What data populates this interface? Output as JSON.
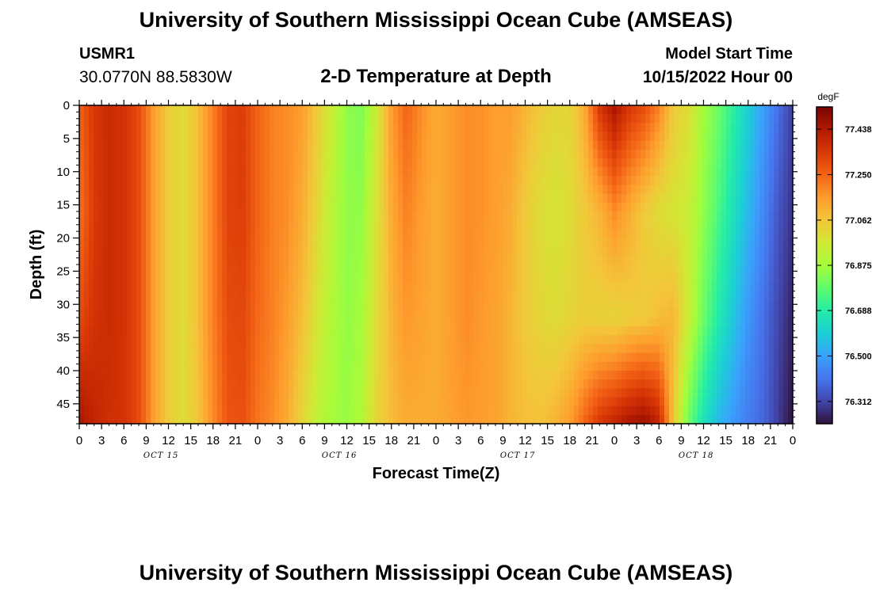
{
  "header": {
    "title": "University of Southern Mississippi Ocean Cube (AMSEAS)",
    "station_id": "USMR1",
    "coordinates": "30.0770N  88.5830W",
    "subtitle": "2-D Temperature at Depth",
    "model_start_label": "Model Start Time",
    "model_start_value": "10/15/2022 Hour 00"
  },
  "footer": {
    "title": "University of Southern Mississippi Ocean Cube (AMSEAS)"
  },
  "chart_data": {
    "type": "heatmap",
    "title": "2-D Temperature at Depth",
    "xlabel": "Forecast Time(Z)",
    "ylabel": "Depth (ft)",
    "x_range_hours": [
      0,
      96
    ],
    "y_range_ft": [
      0,
      48
    ],
    "x_tick_labels": [
      "0",
      "3",
      "6",
      "9",
      "12",
      "15",
      "18",
      "21",
      "0",
      "3",
      "6",
      "9",
      "12",
      "15",
      "18",
      "21",
      "0",
      "3",
      "6",
      "9",
      "12",
      "15",
      "18",
      "21",
      "0",
      "3",
      "6",
      "9",
      "12",
      "15",
      "18",
      "21",
      "0"
    ],
    "x_tick_hours": [
      0,
      3,
      6,
      9,
      12,
      15,
      18,
      21,
      24,
      27,
      30,
      33,
      36,
      39,
      42,
      45,
      48,
      51,
      54,
      57,
      60,
      63,
      66,
      69,
      72,
      75,
      78,
      81,
      84,
      87,
      90,
      93,
      96
    ],
    "date_labels": [
      {
        "label": "OCT 15",
        "hour": 11
      },
      {
        "label": "OCT 16",
        "hour": 35
      },
      {
        "label": "OCT 17",
        "hour": 59
      },
      {
        "label": "OCT 18",
        "hour": 83
      }
    ],
    "y_ticks": [
      0,
      5,
      10,
      15,
      20,
      25,
      30,
      35,
      40,
      45
    ],
    "colorbar": {
      "unit": "degF",
      "min": 76.22,
      "max": 77.53,
      "tick_values": [
        77.438,
        77.25,
        77.062,
        76.875,
        76.688,
        76.5,
        76.312
      ],
      "tick_labels": [
        "77.438",
        "77.250",
        "77.062",
        "76.875",
        "76.688",
        "76.500",
        "76.312"
      ]
    },
    "colormap_stops": [
      "#30123b",
      "#4145ab",
      "#4675ed",
      "#39a2fc",
      "#1bcfd4",
      "#24eca6",
      "#61fc6c",
      "#a4fc3b",
      "#d1e834",
      "#f3c63a",
      "#fe9b2d",
      "#f36315",
      "#d93806",
      "#b11901",
      "#7a0402"
    ],
    "depth_rows": [
      0,
      16,
      32,
      48
    ],
    "time_columns_hours": [
      0,
      2,
      4,
      6,
      8,
      10,
      12,
      14,
      16,
      18,
      20,
      22,
      24,
      26,
      28,
      30,
      32,
      34,
      36,
      38,
      40,
      42,
      44,
      46,
      48,
      50,
      52,
      54,
      56,
      58,
      60,
      62,
      64,
      66,
      68,
      70,
      72,
      74,
      76,
      78,
      80,
      82,
      84,
      86,
      88,
      90,
      92,
      94,
      96
    ],
    "temperature_grid_degF": [
      [
        77.25,
        77.35,
        77.38,
        77.36,
        77.3,
        77.15,
        77.05,
        77.0,
        77.08,
        77.2,
        77.32,
        77.33,
        77.25,
        77.2,
        77.18,
        77.15,
        77.05,
        76.95,
        76.85,
        76.82,
        76.95,
        77.15,
        77.25,
        77.18,
        77.12,
        77.15,
        77.18,
        77.17,
        77.15,
        77.15,
        77.1,
        77.05,
        77.02,
        77.02,
        77.12,
        77.35,
        77.45,
        77.35,
        77.3,
        77.2,
        77.05,
        77.0,
        76.88,
        76.8,
        76.7,
        76.6,
        76.5,
        76.4,
        76.3
      ],
      [
        77.22,
        77.34,
        77.38,
        77.36,
        77.3,
        77.15,
        77.05,
        77.0,
        77.08,
        77.2,
        77.32,
        77.33,
        77.25,
        77.2,
        77.18,
        77.12,
        77.02,
        76.92,
        76.85,
        76.85,
        76.98,
        77.12,
        77.2,
        77.15,
        77.12,
        77.15,
        77.18,
        77.17,
        77.15,
        77.12,
        77.05,
        77.0,
        76.98,
        77.0,
        77.05,
        77.1,
        77.18,
        77.12,
        77.05,
        77.0,
        76.98,
        76.95,
        76.85,
        76.75,
        76.65,
        76.55,
        76.45,
        76.35,
        76.28
      ],
      [
        77.3,
        77.36,
        77.38,
        77.36,
        77.3,
        77.15,
        77.05,
        77.0,
        77.08,
        77.2,
        77.3,
        77.31,
        77.24,
        77.2,
        77.15,
        77.08,
        76.98,
        76.9,
        76.85,
        76.88,
        77.0,
        77.1,
        77.16,
        77.14,
        77.12,
        77.15,
        77.18,
        77.16,
        77.14,
        77.1,
        77.05,
        77.02,
        77.0,
        77.02,
        77.04,
        77.03,
        77.02,
        77.04,
        77.05,
        77.08,
        77.1,
        76.95,
        76.8,
        76.68,
        76.58,
        76.48,
        76.4,
        76.32,
        76.25
      ],
      [
        77.45,
        77.4,
        77.37,
        77.36,
        77.3,
        77.15,
        77.05,
        77.0,
        77.06,
        77.18,
        77.28,
        77.29,
        77.22,
        77.18,
        77.12,
        77.02,
        76.93,
        76.88,
        76.86,
        76.9,
        77.02,
        77.08,
        77.12,
        77.12,
        77.12,
        77.14,
        77.16,
        77.15,
        77.14,
        77.1,
        77.08,
        77.07,
        77.1,
        77.15,
        77.25,
        77.35,
        77.4,
        77.45,
        77.48,
        77.4,
        77.05,
        76.8,
        76.65,
        76.55,
        76.48,
        76.42,
        76.38,
        76.3,
        76.22
      ]
    ]
  }
}
